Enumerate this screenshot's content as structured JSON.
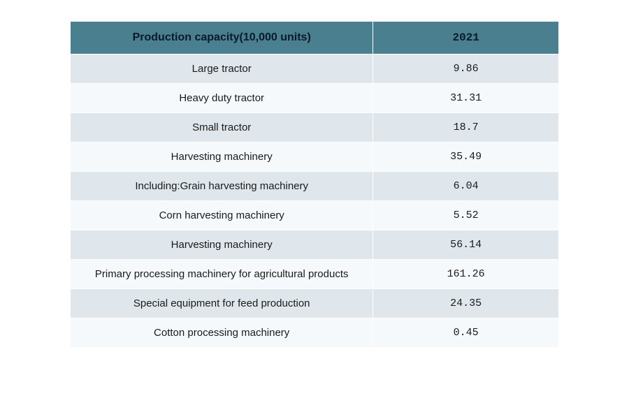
{
  "table": {
    "type": "table",
    "header_bg": "#497f8f",
    "row_alt_bg_odd": "#dfe7ec",
    "row_alt_bg_even": "#f6f9fb",
    "border_color": "#ffffff",
    "text_color": "#1a1a1a",
    "header_text_color": "#0a1a2a",
    "columns": [
      {
        "key": "label",
        "title": "Production capacity(10,000 units)",
        "width_pct": 62,
        "align": "center"
      },
      {
        "key": "value",
        "title": "2021",
        "width_pct": 38,
        "align": "center"
      }
    ],
    "rows": [
      {
        "label": "Large tractor",
        "value": "9.86"
      },
      {
        "label": "Heavy duty tractor",
        "value": "31.31"
      },
      {
        "label": "Small tractor",
        "value": "18.7"
      },
      {
        "label": "Harvesting machinery",
        "value": "35.49"
      },
      {
        "label": "Including:Grain harvesting machinery",
        "value": "6.04"
      },
      {
        "label": "Corn harvesting machinery",
        "value": "5.52"
      },
      {
        "label": "Harvesting machinery",
        "value": "56.14"
      },
      {
        "label": "Primary processing machinery for agricultural products",
        "value": "161.26"
      },
      {
        "label": "Special equipment for feed production",
        "value": "24.35"
      },
      {
        "label": "Cotton processing machinery",
        "value": "0.45"
      }
    ]
  }
}
